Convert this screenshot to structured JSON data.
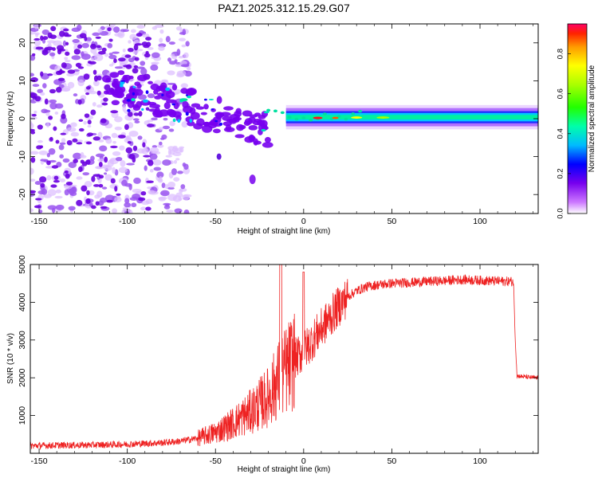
{
  "title": "PAZ1.2025.312.15.29.G07",
  "chart_data": [
    {
      "type": "heatmap",
      "xlabel": "Height of straight line (km)",
      "ylabel": "Frequency (Hz)",
      "xlim": [
        -155,
        133
      ],
      "ylim": [
        -25,
        25
      ],
      "xticks": [
        -150,
        -100,
        -50,
        0,
        50,
        100
      ],
      "yticks": [
        -20,
        -10,
        0,
        10,
        20
      ],
      "colorbar": {
        "label": "Normalized spectral amplitude",
        "range": [
          0,
          0.95
        ],
        "ticks": [
          0.0,
          0.2,
          0.4,
          0.6,
          0.8
        ]
      }
    },
    {
      "type": "line",
      "xlabel": "Height of straight line (km)",
      "ylabel": "SNR (10 * v/v)",
      "xlim": [
        -155,
        133
      ],
      "ylim": [
        0,
        5000
      ],
      "xticks": [
        -150,
        -100,
        -50,
        0,
        50,
        100
      ],
      "yticks": [
        1000,
        2000,
        3000,
        4000,
        5000
      ],
      "series": [
        {
          "name": "SNR",
          "color": "#ee2222",
          "x": [
            -155,
            -140,
            -120,
            -100,
            -80,
            -70,
            -60,
            -50,
            -40,
            -30,
            -20,
            -15,
            -10,
            -5,
            0,
            5,
            10,
            15,
            20,
            25,
            30,
            35,
            40,
            50,
            60,
            70,
            80,
            90,
            100,
            110,
            119,
            120,
            121,
            130,
            133
          ],
          "y": [
            200,
            210,
            220,
            240,
            280,
            320,
            400,
            550,
            800,
            1100,
            1500,
            1900,
            2200,
            2500,
            2700,
            3000,
            3300,
            3600,
            3900,
            4150,
            4300,
            4400,
            4450,
            4500,
            4520,
            4550,
            4570,
            4600,
            4580,
            4560,
            4550,
            3000,
            2050,
            2000,
            2000
          ]
        }
      ]
    }
  ]
}
